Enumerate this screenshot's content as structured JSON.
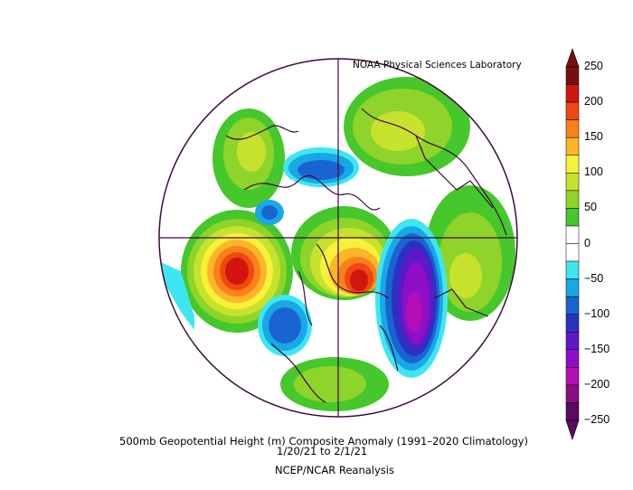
{
  "header": {
    "credit": "NOAA Physical Sciences Laboratory"
  },
  "caption": {
    "line1": "500mb Geopotential Height (m) Composite Anomaly (1991–2020 Climatology)",
    "line2": "1/20/21   to 2/1/21",
    "line3": "NCEP/NCAR Reanalysis"
  },
  "colorbar": {
    "ticks": [
      "250",
      "200",
      "150",
      "100",
      "50",
      "0",
      "−50",
      "−100",
      "−150",
      "−200",
      "−250"
    ],
    "colors": [
      "#7a0e0e",
      "#d0160f",
      "#f04712",
      "#f8821a",
      "#fdb627",
      "#f6f23a",
      "#c7e22c",
      "#8ed42a",
      "#46c72b",
      "#ffffff",
      "#ffffff",
      "#3ee7f0",
      "#18a8e6",
      "#1a64d2",
      "#2a33bf",
      "#5d19c7",
      "#8f0fc9",
      "#b40fb4",
      "#8a0c86",
      "#5a0a5f"
    ]
  },
  "projection": "north-polar-stereographic",
  "colors": {
    "coastline": "#3b0a3a",
    "background": "#ffffff"
  }
}
